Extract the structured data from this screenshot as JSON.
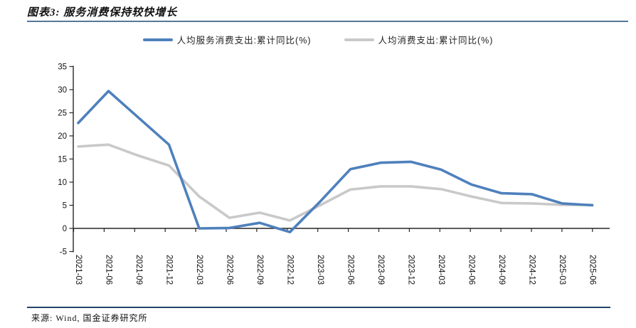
{
  "header": {
    "title": "图表3: 服务消费保持较快增长"
  },
  "legend": {
    "items": [
      {
        "label": "人均服务消费支出:累计同比(%)",
        "color": "#4e80bc"
      },
      {
        "label": "人均消费支出:累计同比(%)",
        "color": "#c9c9c9"
      }
    ]
  },
  "chart_data": {
    "type": "line",
    "title": "图表3: 服务消费保持较快增长",
    "categories": [
      "2021-03",
      "2021-06",
      "2021-09",
      "2021-12",
      "2022-03",
      "2022-06",
      "2022-09",
      "2022-12",
      "2023-03",
      "2023-06",
      "2023-09",
      "2023-12",
      "2024-03",
      "2024-06",
      "2024-09",
      "2024-12",
      "2025-03",
      "2025-06"
    ],
    "series": [
      {
        "name": "人均服务消费支出:累计同比(%)",
        "color": "#4e80bc",
        "values": [
          22.8,
          29.7,
          23.9,
          18.1,
          0.0,
          0.1,
          1.2,
          -0.8,
          5.8,
          12.8,
          14.2,
          14.4,
          12.7,
          9.5,
          7.6,
          7.4,
          5.4,
          5.0
        ]
      },
      {
        "name": "人均消费支出:累计同比(%)",
        "color": "#c9c9c9",
        "values": [
          17.7,
          18.1,
          15.7,
          13.6,
          6.9,
          2.3,
          3.4,
          1.7,
          5.0,
          8.4,
          9.1,
          9.1,
          8.5,
          6.9,
          5.5,
          5.4,
          5.1,
          5.1
        ]
      }
    ],
    "xlabel": "",
    "ylabel": "",
    "ylim": [
      -5,
      35
    ],
    "yticks": [
      35,
      30,
      25,
      20,
      15,
      10,
      5,
      0,
      -5
    ],
    "grid": false,
    "legend_position": "top-center",
    "axis_color": "#262626"
  },
  "footer": {
    "source": "来源: Wind, 国金证券研究所"
  }
}
